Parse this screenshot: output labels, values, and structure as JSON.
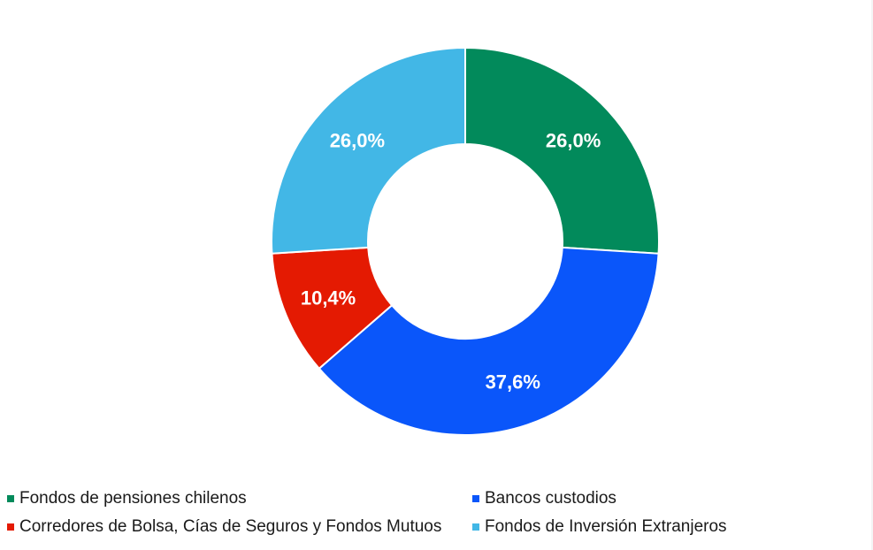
{
  "chart_data": {
    "type": "pie",
    "variant": "donut",
    "title": "",
    "categories": [
      "Fondos de pensiones chilenos",
      "Bancos custodios",
      "Corredores de Bolsa, Cías de Seguros y Fondos Mutuos",
      "Fondos de Inversión Extranjeros"
    ],
    "values": [
      26.0,
      37.6,
      10.4,
      26.0
    ],
    "labels": [
      "26,0%",
      "37,6%",
      "10,4%",
      "26,0%"
    ],
    "colors": [
      "#028A5B",
      "#0A56FA",
      "#E41A02",
      "#42B7E6"
    ],
    "start_angle": "top (12 o'clock), clockwise",
    "legend_position": "bottom"
  },
  "legend": {
    "items": [
      {
        "label": "Fondos de pensiones chilenos",
        "color": "#028A5B"
      },
      {
        "label": "Bancos custodios",
        "color": "#0A56FA"
      },
      {
        "label": "Corredores de Bolsa, Cías de Seguros y Fondos Mutuos",
        "color": "#E41A02"
      },
      {
        "label": "Fondos de Inversión Extranjeros",
        "color": "#42B7E6"
      }
    ]
  }
}
